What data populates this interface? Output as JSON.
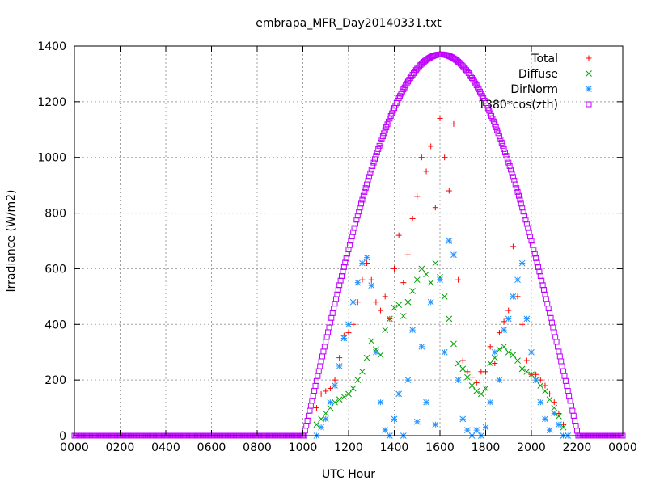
{
  "chart_data": {
    "type": "scatter",
    "title": "embrapa_MFR_Day20140331.txt",
    "xlabel": "UTC Hour",
    "ylabel": "Irradiance (W/m2)",
    "xlim": [
      0,
      24
    ],
    "ylim": [
      0,
      1400
    ],
    "xticks": [
      0,
      2,
      4,
      6,
      8,
      10,
      12,
      14,
      16,
      18,
      20,
      22,
      24
    ],
    "xtick_labels": [
      "0000",
      "0200",
      "0400",
      "0600",
      "0800",
      "1000",
      "1200",
      "1400",
      "1600",
      "1800",
      "2000",
      "2200",
      "0000"
    ],
    "yticks": [
      0,
      200,
      400,
      600,
      800,
      1000,
      1200,
      1400
    ],
    "grid": true,
    "legend_position": "top-right",
    "series": [
      {
        "name": "Total",
        "marker": "plus",
        "color": "#ff0000",
        "points": [
          [
            10.6,
            100
          ],
          [
            10.8,
            150
          ],
          [
            11.0,
            160
          ],
          [
            11.2,
            170
          ],
          [
            11.4,
            200
          ],
          [
            11.6,
            280
          ],
          [
            11.8,
            360
          ],
          [
            12.0,
            370
          ],
          [
            12.2,
            400
          ],
          [
            12.4,
            480
          ],
          [
            12.6,
            560
          ],
          [
            12.8,
            620
          ],
          [
            13.0,
            560
          ],
          [
            13.2,
            480
          ],
          [
            13.4,
            450
          ],
          [
            13.6,
            500
          ],
          [
            13.8,
            420
          ],
          [
            14.0,
            600
          ],
          [
            14.2,
            720
          ],
          [
            14.4,
            550
          ],
          [
            14.6,
            650
          ],
          [
            14.8,
            780
          ],
          [
            15.0,
            860
          ],
          [
            15.2,
            1000
          ],
          [
            15.4,
            950
          ],
          [
            15.6,
            1040
          ],
          [
            15.8,
            820
          ],
          [
            16.0,
            1140
          ],
          [
            16.2,
            1000
          ],
          [
            16.4,
            880
          ],
          [
            16.6,
            1120
          ],
          [
            16.8,
            560
          ],
          [
            17.0,
            270
          ],
          [
            17.2,
            230
          ],
          [
            17.4,
            210
          ],
          [
            17.6,
            190
          ],
          [
            17.8,
            230
          ],
          [
            18.0,
            230
          ],
          [
            18.2,
            320
          ],
          [
            18.4,
            260
          ],
          [
            18.6,
            370
          ],
          [
            18.8,
            410
          ],
          [
            19.0,
            450
          ],
          [
            19.2,
            680
          ],
          [
            19.4,
            500
          ],
          [
            19.6,
            400
          ],
          [
            19.8,
            270
          ],
          [
            20.0,
            220
          ],
          [
            20.2,
            220
          ],
          [
            20.4,
            200
          ],
          [
            20.6,
            180
          ],
          [
            20.8,
            150
          ],
          [
            21.0,
            120
          ],
          [
            21.2,
            80
          ],
          [
            21.4,
            40
          ]
        ]
      },
      {
        "name": "Diffuse",
        "marker": "cross",
        "color": "#00a000",
        "points": [
          [
            10.6,
            40
          ],
          [
            10.8,
            60
          ],
          [
            11.0,
            80
          ],
          [
            11.2,
            100
          ],
          [
            11.4,
            120
          ],
          [
            11.6,
            130
          ],
          [
            11.8,
            140
          ],
          [
            12.0,
            150
          ],
          [
            12.2,
            170
          ],
          [
            12.4,
            200
          ],
          [
            12.6,
            230
          ],
          [
            12.8,
            280
          ],
          [
            13.0,
            340
          ],
          [
            13.2,
            310
          ],
          [
            13.4,
            290
          ],
          [
            13.6,
            380
          ],
          [
            13.8,
            420
          ],
          [
            14.0,
            460
          ],
          [
            14.2,
            470
          ],
          [
            14.4,
            430
          ],
          [
            14.6,
            480
          ],
          [
            14.8,
            520
          ],
          [
            15.0,
            560
          ],
          [
            15.2,
            600
          ],
          [
            15.4,
            580
          ],
          [
            15.6,
            550
          ],
          [
            15.8,
            620
          ],
          [
            16.0,
            570
          ],
          [
            16.2,
            500
          ],
          [
            16.4,
            420
          ],
          [
            16.6,
            330
          ],
          [
            16.8,
            260
          ],
          [
            17.0,
            240
          ],
          [
            17.2,
            210
          ],
          [
            17.4,
            180
          ],
          [
            17.6,
            160
          ],
          [
            17.8,
            150
          ],
          [
            18.0,
            170
          ],
          [
            18.2,
            260
          ],
          [
            18.4,
            280
          ],
          [
            18.6,
            310
          ],
          [
            18.8,
            320
          ],
          [
            19.0,
            300
          ],
          [
            19.2,
            290
          ],
          [
            19.4,
            270
          ],
          [
            19.6,
            240
          ],
          [
            19.8,
            230
          ],
          [
            20.0,
            220
          ],
          [
            20.2,
            200
          ],
          [
            20.4,
            180
          ],
          [
            20.6,
            160
          ],
          [
            20.8,
            130
          ],
          [
            21.0,
            100
          ],
          [
            21.2,
            70
          ],
          [
            21.4,
            30
          ]
        ]
      },
      {
        "name": "DirNorm",
        "marker": "star",
        "color": "#1e90ff",
        "points": [
          [
            10.6,
            0
          ],
          [
            10.8,
            30
          ],
          [
            11.0,
            60
          ],
          [
            11.2,
            120
          ],
          [
            11.4,
            180
          ],
          [
            11.6,
            250
          ],
          [
            11.8,
            350
          ],
          [
            12.0,
            400
          ],
          [
            12.2,
            480
          ],
          [
            12.4,
            550
          ],
          [
            12.6,
            620
          ],
          [
            12.8,
            640
          ],
          [
            13.0,
            540
          ],
          [
            13.2,
            300
          ],
          [
            13.4,
            120
          ],
          [
            13.6,
            20
          ],
          [
            13.8,
            0
          ],
          [
            14.0,
            60
          ],
          [
            14.2,
            150
          ],
          [
            14.4,
            0
          ],
          [
            14.6,
            200
          ],
          [
            14.8,
            380
          ],
          [
            15.0,
            50
          ],
          [
            15.2,
            320
          ],
          [
            15.4,
            120
          ],
          [
            15.6,
            480
          ],
          [
            15.8,
            40
          ],
          [
            16.0,
            560
          ],
          [
            16.2,
            300
          ],
          [
            16.4,
            700
          ],
          [
            16.6,
            650
          ],
          [
            16.8,
            200
          ],
          [
            17.0,
            60
          ],
          [
            17.2,
            20
          ],
          [
            17.4,
            0
          ],
          [
            17.6,
            20
          ],
          [
            17.8,
            0
          ],
          [
            18.0,
            30
          ],
          [
            18.2,
            120
          ],
          [
            18.4,
            300
          ],
          [
            18.6,
            200
          ],
          [
            18.8,
            380
          ],
          [
            19.0,
            420
          ],
          [
            19.2,
            500
          ],
          [
            19.4,
            560
          ],
          [
            19.6,
            620
          ],
          [
            19.8,
            420
          ],
          [
            20.0,
            300
          ],
          [
            20.2,
            200
          ],
          [
            20.4,
            120
          ],
          [
            20.6,
            60
          ],
          [
            20.8,
            20
          ],
          [
            21.0,
            80
          ],
          [
            21.2,
            40
          ],
          [
            21.4,
            0
          ],
          [
            21.6,
            0
          ]
        ]
      },
      {
        "name": "1380*cos(zth)",
        "marker": "square",
        "color": "#bf00ff",
        "formula_peak": 1370,
        "formula_start": 10.05,
        "formula_end": 22.05
      }
    ]
  }
}
